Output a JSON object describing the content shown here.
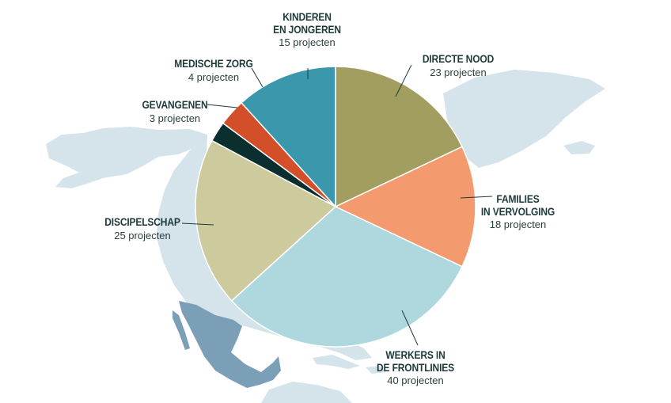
{
  "colors": {
    "map_light": "#d5e3ea",
    "map_dark": "#7a9fb6",
    "leader": "#1e3a3a"
  },
  "chart_data": {
    "type": "pie",
    "title": "",
    "unit": "projecten",
    "slices": [
      {
        "label": "DIRECTE NOOD",
        "value": 23,
        "value_text": "23 projecten",
        "color": "#a19e5f"
      },
      {
        "label": "FAMILIES\nIN VERVOLGING",
        "value": 18,
        "value_text": "18 projecten",
        "color": "#f39a6e"
      },
      {
        "label": "WERKERS IN\nDE FRONTLINIES",
        "value": 40,
        "value_text": "40 projecten",
        "color": "#aed8de"
      },
      {
        "label": "DISCIPELSCHAP",
        "value": 25,
        "value_text": "25 projecten",
        "color": "#cdcb9d"
      },
      {
        "label": "GEVANGENEN",
        "value": 3,
        "value_text": "3 projecten",
        "color": "#0b2e2f"
      },
      {
        "label": "MEDISCHE ZORG",
        "value": 4,
        "value_text": "4 projecten",
        "color": "#d24f2a"
      },
      {
        "label": "KINDEREN\nEN JONGEREN",
        "value": 15,
        "value_text": "15 projecten",
        "color": "#3a97ac"
      }
    ]
  }
}
